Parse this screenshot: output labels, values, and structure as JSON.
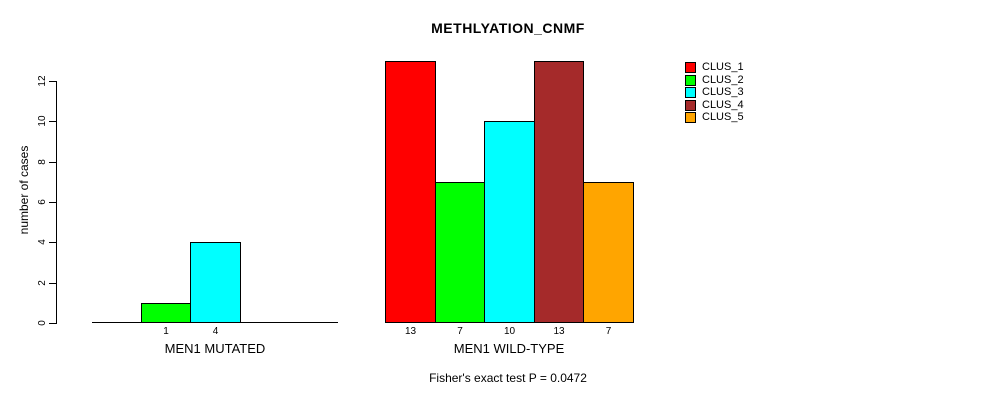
{
  "chart_data": {
    "type": "bar",
    "title": "METHLYATION_CNMF",
    "ylabel": "number of cases",
    "ylim": [
      0,
      12
    ],
    "yticks": [
      0,
      2,
      4,
      6,
      8,
      10,
      12
    ],
    "grid": false,
    "legend_position": "right",
    "series_colors": [
      "#FF0000",
      "#00FF00",
      "#00FFFF",
      "#A52A2A",
      "#FFA500"
    ],
    "legend": [
      {
        "label": "CLUS_1",
        "color": "#FF0000"
      },
      {
        "label": "CLUS_2",
        "color": "#00FF00"
      },
      {
        "label": "CLUS_3",
        "color": "#00FFFF"
      },
      {
        "label": "CLUS_4",
        "color": "#A52A2A"
      },
      {
        "label": "CLUS_5",
        "color": "#FFA500"
      }
    ],
    "groups": [
      {
        "label": "MEN1 MUTATED",
        "values": [
          0,
          1,
          4,
          0,
          0
        ],
        "bar_labels": [
          "",
          "1",
          "4",
          "",
          ""
        ]
      },
      {
        "label": "MEN1 WILD-TYPE",
        "values": [
          13,
          7,
          10,
          13,
          7
        ],
        "bar_labels": [
          "13",
          "7",
          "10",
          "13",
          "7"
        ]
      }
    ],
    "annotation": "Fisher's exact test P = 0.0472",
    "axis_color": "#000000",
    "text_color": "#000000"
  }
}
